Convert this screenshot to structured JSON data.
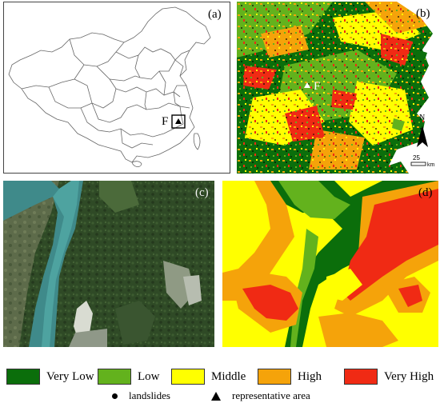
{
  "panels": {
    "a": {
      "label": "(a)",
      "marker_text": "F"
    },
    "b": {
      "label": "(b)",
      "marker_text": "F",
      "north": "N",
      "scale_value": "25",
      "scale_unit": "km"
    },
    "c": {
      "label": "(c)"
    },
    "d": {
      "label": "(d)"
    }
  },
  "legend": {
    "classes": [
      {
        "label": "Very Low",
        "color": "#0b6e0b"
      },
      {
        "label": "Low",
        "color": "#63b21d"
      },
      {
        "label": "Middle",
        "color": "#ffff00"
      },
      {
        "label": "High",
        "color": "#f5a30a"
      },
      {
        "label": "Very High",
        "color": "#f02a14"
      }
    ],
    "symbols": [
      {
        "label": "landslides",
        "icon": "dot-icon"
      },
      {
        "label": "representative area",
        "icon": "triangle-icon"
      }
    ]
  }
}
